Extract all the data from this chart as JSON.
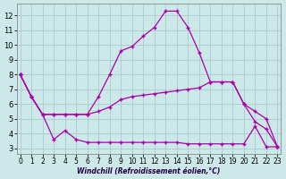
{
  "xlabel": "Windchill (Refroidissement éolien,°C)",
  "bg_color": "#cce8e8",
  "grid_color": "#aacccc",
  "line_color": "#aa00aa",
  "xlim": [
    -0.3,
    23.3
  ],
  "ylim": [
    2.6,
    12.8
  ],
  "yticks": [
    3,
    4,
    5,
    6,
    7,
    8,
    9,
    10,
    11,
    12
  ],
  "xticks": [
    0,
    1,
    2,
    3,
    4,
    5,
    6,
    7,
    8,
    9,
    10,
    11,
    12,
    13,
    14,
    15,
    16,
    17,
    18,
    19,
    20,
    21,
    22,
    23
  ],
  "line_peak_x": [
    0,
    1,
    2,
    3,
    4,
    5,
    6,
    7,
    8,
    9,
    10,
    11,
    12,
    13,
    14,
    15,
    16,
    17,
    18,
    19,
    20,
    21,
    22,
    23
  ],
  "line_peak_y": [
    8.0,
    6.5,
    5.3,
    5.3,
    5.3,
    5.3,
    5.3,
    6.5,
    8.0,
    9.6,
    9.9,
    10.6,
    11.2,
    12.3,
    12.3,
    11.2,
    9.5,
    7.5,
    7.5,
    7.5,
    6.0,
    4.8,
    4.3,
    3.1
  ],
  "line_mid_x": [
    0,
    1,
    2,
    3,
    4,
    5,
    6,
    7,
    8,
    9,
    10,
    11,
    12,
    13,
    14,
    15,
    16,
    17,
    18,
    19,
    20,
    21,
    22,
    23
  ],
  "line_mid_y": [
    8.0,
    6.5,
    5.3,
    5.3,
    5.3,
    5.3,
    5.3,
    5.5,
    5.8,
    6.3,
    6.5,
    6.6,
    6.7,
    6.8,
    6.9,
    7.0,
    7.1,
    7.5,
    7.5,
    7.5,
    6.0,
    5.5,
    5.0,
    3.1
  ],
  "line_low_x": [
    0,
    1,
    2,
    3,
    4,
    5,
    6,
    7,
    8,
    9,
    10,
    11,
    12,
    13,
    14,
    15,
    16,
    17,
    18,
    19,
    20,
    21,
    22,
    23
  ],
  "line_low_y": [
    8.0,
    6.5,
    5.3,
    3.6,
    4.2,
    3.6,
    3.4,
    3.4,
    3.4,
    3.4,
    3.4,
    3.4,
    3.4,
    3.4,
    3.4,
    3.3,
    3.3,
    3.3,
    3.3,
    3.3,
    3.3,
    4.5,
    3.1,
    3.1
  ]
}
